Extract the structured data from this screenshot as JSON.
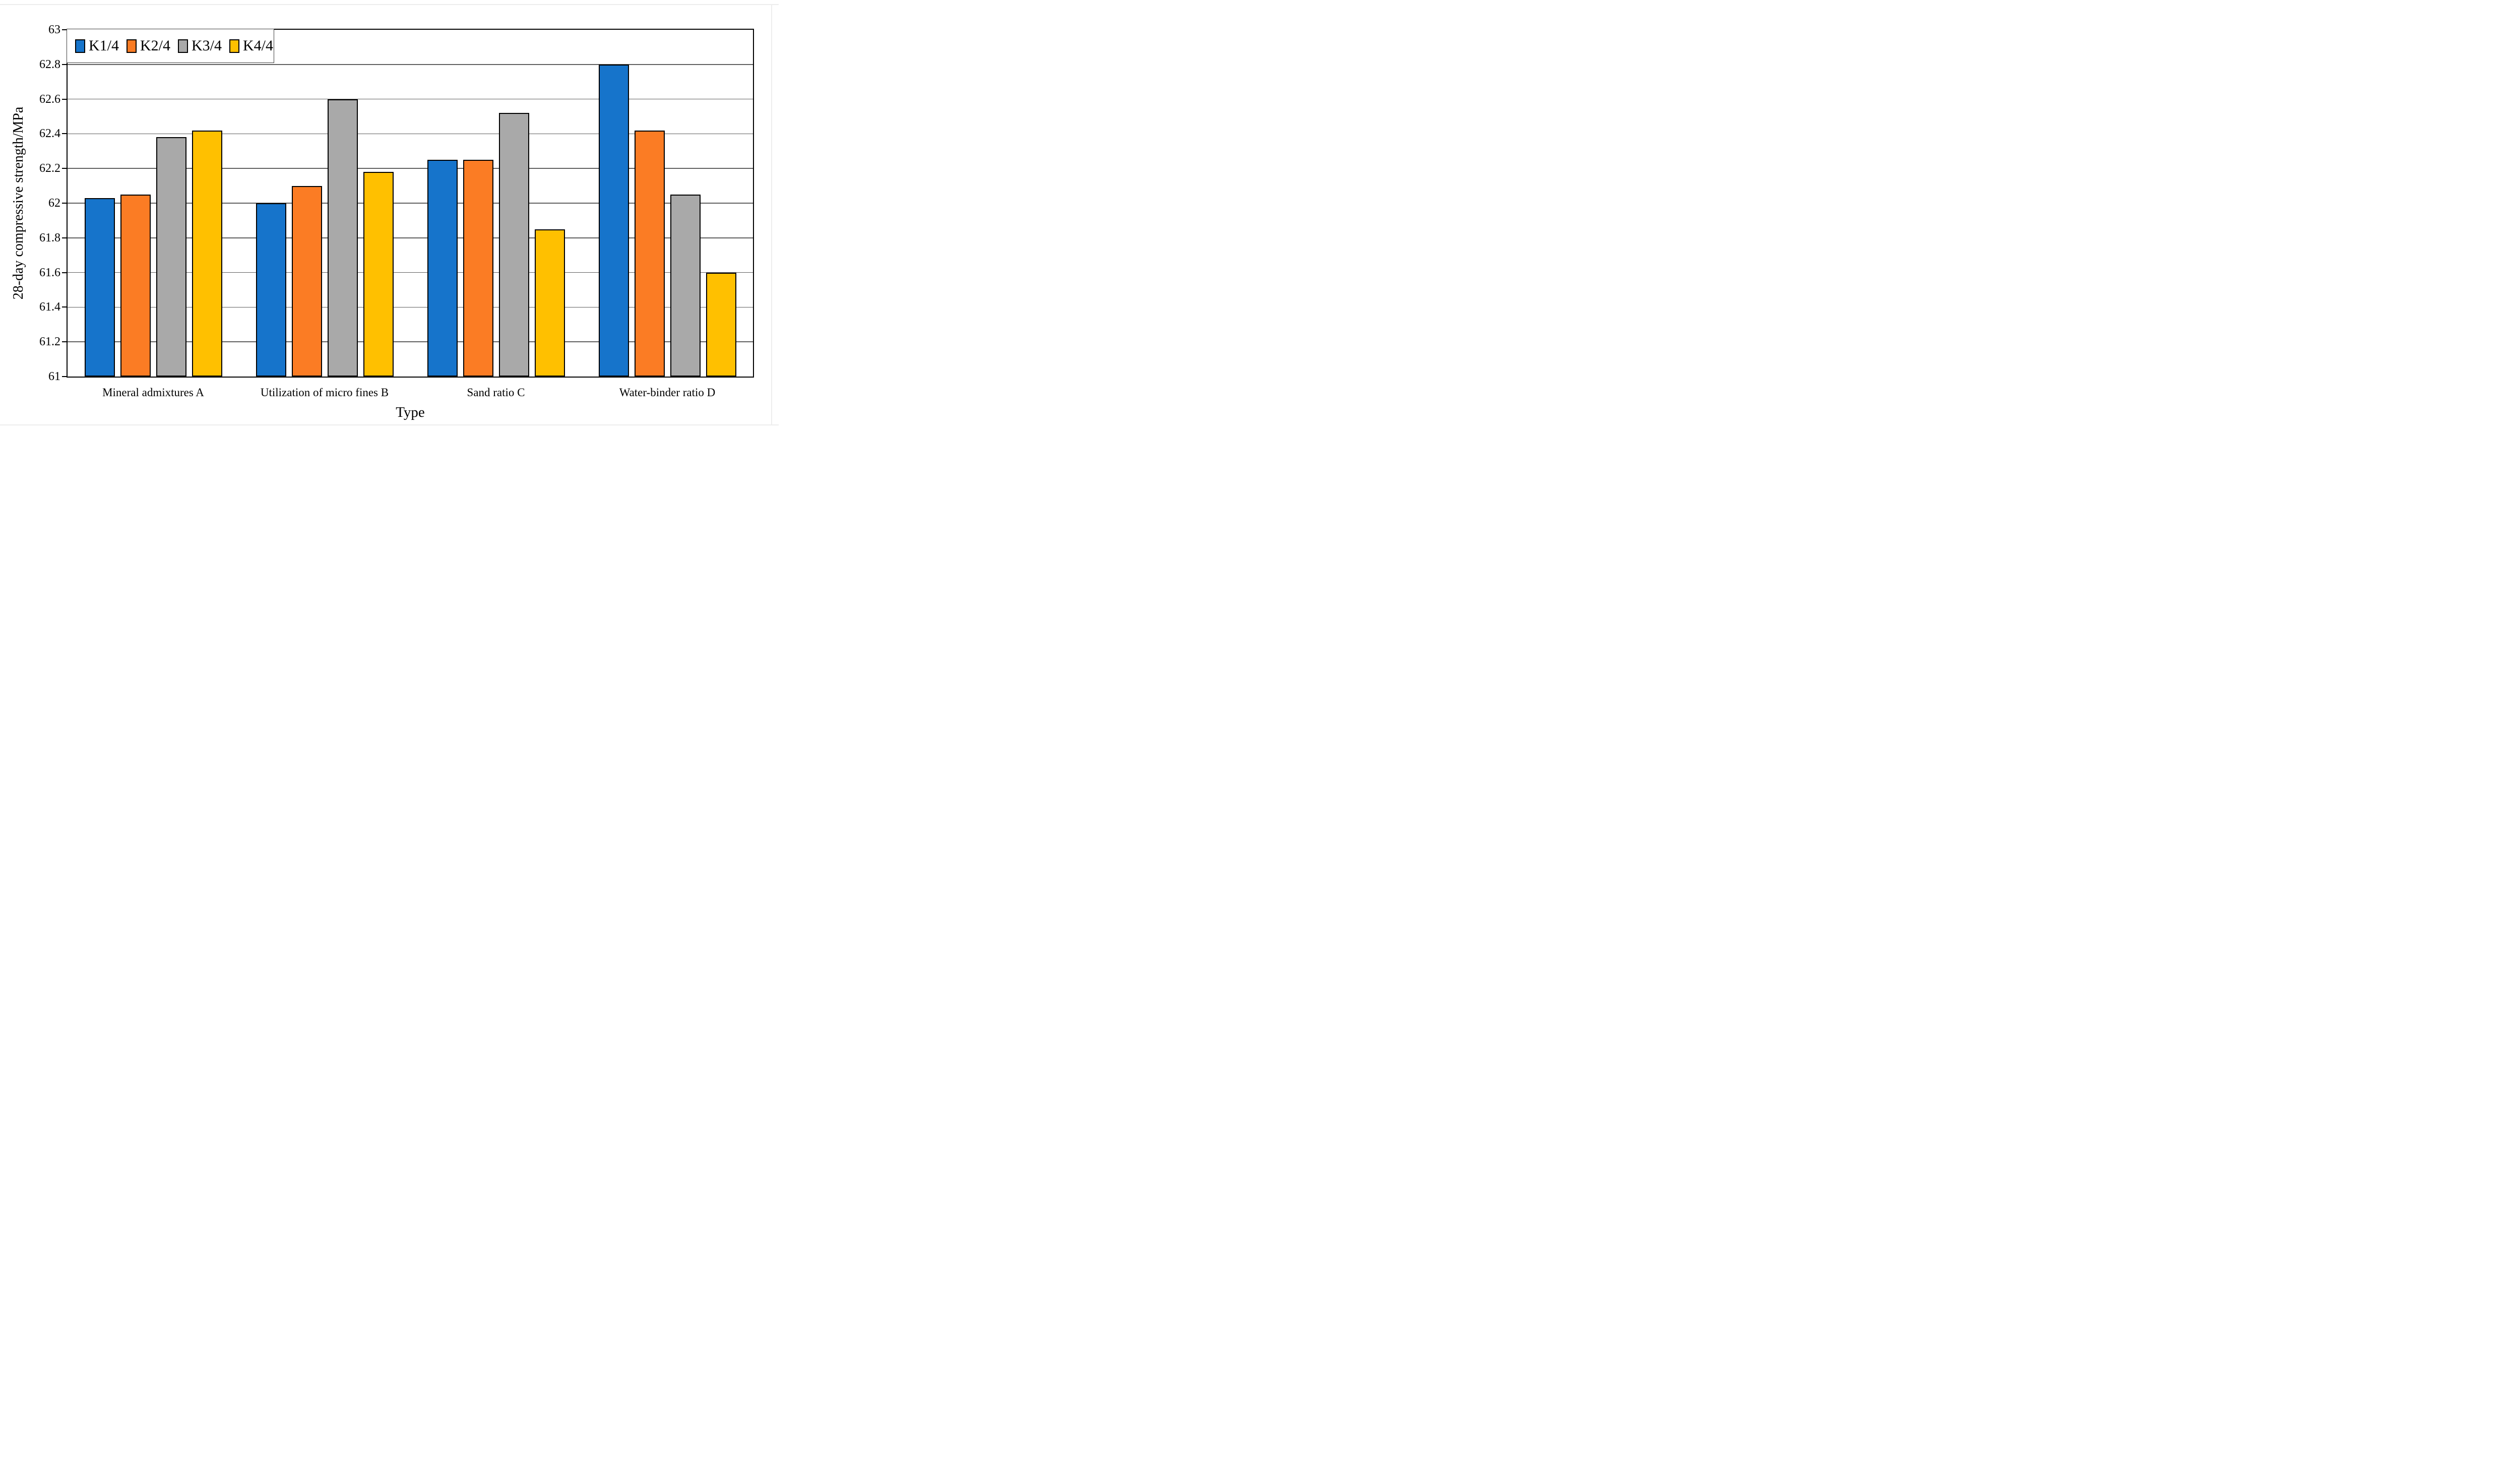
{
  "figure": {
    "background": "#ffffff",
    "frame_color": "#ededed"
  },
  "chart_data": {
    "type": "bar",
    "title": "",
    "xlabel": "Type",
    "ylabel": "28-day compressive strength/MPa",
    "ylim": [
      61,
      63
    ],
    "ytick_step": 0.2,
    "yticks": [
      61,
      61.2,
      61.4,
      61.6,
      61.8,
      62,
      62.2,
      62.4,
      62.6,
      62.8,
      63
    ],
    "grid": "horizontal",
    "gridline_color": "#5f5f5f",
    "axis_color": "#000000",
    "bar_border_color": "#000000",
    "legend_position": "top-left-inside",
    "categories": [
      "Mineral admixtures A",
      "Utilization of micro fines B",
      "Sand ratio C",
      "Water-binder ratio D"
    ],
    "series": [
      {
        "name": "K1/4",
        "color": "#1674CB",
        "values": [
          62.03,
          62.0,
          62.25,
          62.8
        ]
      },
      {
        "name": "K2/4",
        "color": "#FB7C24",
        "values": [
          62.05,
          62.1,
          62.25,
          62.42
        ]
      },
      {
        "name": "K3/4",
        "color": "#A9A9A9",
        "values": [
          62.38,
          62.6,
          62.52,
          62.05
        ]
      },
      {
        "name": "K4/4",
        "color": "#FFC000",
        "values": [
          62.42,
          62.18,
          61.85,
          61.6
        ]
      }
    ]
  }
}
